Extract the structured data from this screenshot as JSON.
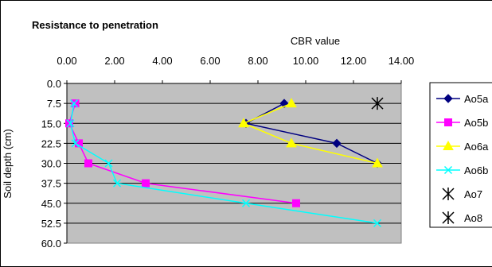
{
  "chart_data": {
    "type": "line",
    "title": "Resistance to penetration",
    "xlabel": "CBR value",
    "ylabel": "Soil depth (cm)",
    "xlim": [
      0,
      14
    ],
    "ylim": [
      0,
      60
    ],
    "y_inverted": true,
    "x_axis_position": "top",
    "xticks": [
      "0.00",
      "2.00",
      "4.00",
      "6.00",
      "8.00",
      "10.00",
      "12.00",
      "14.00"
    ],
    "yticks": [
      "0.0",
      "7.5",
      "15.0",
      "22.5",
      "30.0",
      "37.5",
      "45.0",
      "52.5",
      "60.0"
    ],
    "grid": "horizontal",
    "plot_background": "#c0c0c0",
    "legend_position": "right",
    "series": [
      {
        "name": "Ao5a",
        "color": "#000080",
        "marker": "diamond",
        "points": [
          [
            9.1,
            7.5
          ],
          [
            7.5,
            15.0
          ],
          [
            11.3,
            22.5
          ],
          [
            13.0,
            30.0
          ]
        ]
      },
      {
        "name": "Ao5b",
        "color": "#ff00ff",
        "marker": "square",
        "points": [
          [
            0.35,
            7.5
          ],
          [
            0.1,
            15.0
          ],
          [
            0.5,
            22.5
          ],
          [
            0.9,
            30.0
          ],
          [
            3.3,
            37.5
          ],
          [
            9.6,
            45.0
          ]
        ]
      },
      {
        "name": "Ao6a",
        "color": "#ffff00",
        "marker": "triangle",
        "points": [
          [
            9.4,
            7.5
          ],
          [
            7.4,
            15.0
          ],
          [
            9.4,
            22.5
          ],
          [
            13.0,
            30.0
          ]
        ]
      },
      {
        "name": "Ao6b",
        "color": "#00ffff",
        "marker": "x",
        "points": [
          [
            0.3,
            7.5
          ],
          [
            0.15,
            15.0
          ],
          [
            0.35,
            22.5
          ],
          [
            1.75,
            30.0
          ],
          [
            2.1,
            37.5
          ],
          [
            7.5,
            45.0
          ],
          [
            13.0,
            52.5
          ]
        ]
      },
      {
        "name": "Ao7",
        "color": "#000000",
        "marker": "asterisk",
        "line": false,
        "points": [
          [
            13.0,
            7.5
          ]
        ]
      },
      {
        "name": "Ao8",
        "color": "#000000",
        "marker": "asterisk",
        "line": false,
        "points": []
      }
    ]
  }
}
